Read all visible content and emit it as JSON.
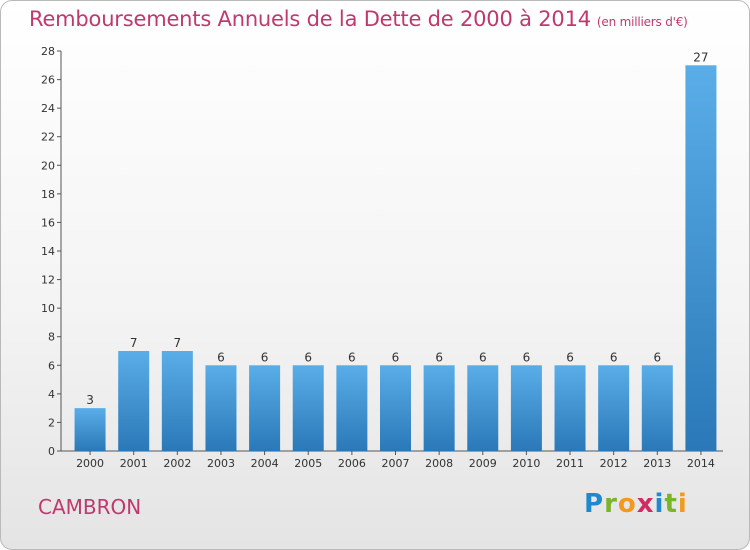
{
  "header": {
    "title": "Remboursements Annuels de la Dette de 2000 à 2014",
    "subtitle": "(en milliers d'€)"
  },
  "footer": {
    "commune": "CAMBRON",
    "logo_letters": [
      "P",
      "r",
      "o",
      "x",
      "i",
      "t",
      "i"
    ]
  },
  "colors": {
    "title": "#c0396e",
    "bar_top": "#5aaee8",
    "bar_bottom": "#2a78b8"
  },
  "chart_data": {
    "type": "bar",
    "categories": [
      "2000",
      "2001",
      "2002",
      "2003",
      "2004",
      "2005",
      "2006",
      "2007",
      "2008",
      "2009",
      "2010",
      "2011",
      "2012",
      "2013",
      "2014"
    ],
    "values": [
      3,
      7,
      7,
      6,
      6,
      6,
      6,
      6,
      6,
      6,
      6,
      6,
      6,
      6,
      27
    ],
    "data_labels": [
      "3",
      "7",
      "7",
      "6",
      "6",
      "6",
      "6",
      "6",
      "6",
      "6",
      "6",
      "6",
      "6",
      "6",
      "27"
    ],
    "yticks": [
      "0",
      "2",
      "4",
      "6",
      "8",
      "10",
      "12",
      "14",
      "16",
      "18",
      "20",
      "22",
      "24",
      "26",
      "28"
    ],
    "ylim": [
      0,
      28
    ],
    "xlabel": "",
    "ylabel": "",
    "grid": false,
    "legend": "none"
  }
}
